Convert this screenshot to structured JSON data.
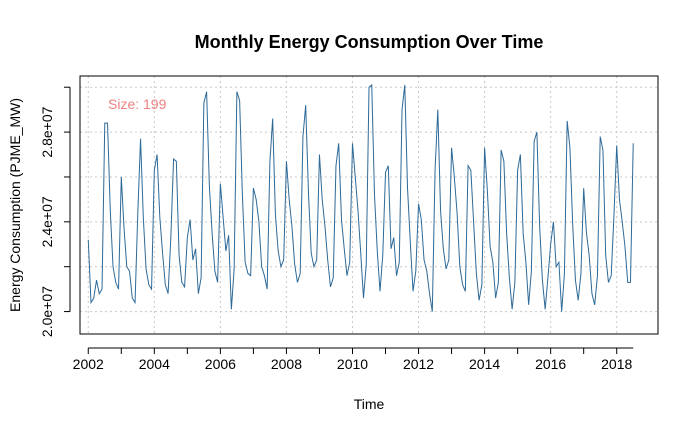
{
  "chart_data": {
    "type": "line",
    "title": "Monthly Energy Consumption Over Time",
    "xlabel": "Time",
    "ylabel": "Energy Consumption (PJME_MW)",
    "annotation": "Size: 199",
    "xlim": [
      2001.75,
      2019.25
    ],
    "ylim": [
      19000000,
      30500000
    ],
    "xticks": [
      2002,
      2004,
      2006,
      2008,
      2010,
      2012,
      2014,
      2016,
      2018
    ],
    "xtick_labels": [
      "2002",
      "2004",
      "2006",
      "2008",
      "2010",
      "2012",
      "2014",
      "2016",
      "2018"
    ],
    "yticks": [
      20000000,
      24000000,
      28000000
    ],
    "ytick_labels": [
      "2.0e+07",
      "2.4e+07",
      "2.8e+07"
    ],
    "grid": true,
    "series": [
      {
        "start": 2002.0,
        "step": 0.083333,
        "values": [
          23200000,
          20400000,
          20600000,
          21400000,
          20800000,
          21000000,
          28400000,
          28400000,
          24500000,
          22000000,
          21300000,
          21000000,
          26000000,
          23700000,
          22000000,
          21800000,
          20600000,
          20400000,
          24400000,
          27700000,
          24200000,
          21900000,
          21200000,
          21000000,
          26300000,
          27000000,
          24200000,
          22600000,
          21200000,
          20800000,
          23300000,
          26800000,
          26700000,
          22500000,
          21300000,
          21100000,
          23300000,
          24100000,
          22300000,
          22800000,
          20800000,
          21500000,
          29300000,
          29800000,
          25600000,
          23500000,
          21800000,
          21300000,
          25700000,
          24200000,
          22700000,
          23400000,
          20100000,
          21900000,
          29800000,
          29400000,
          25200000,
          22200000,
          21700000,
          21600000,
          25500000,
          25000000,
          24000000,
          22000000,
          21600000,
          21000000,
          26700000,
          28600000,
          24300000,
          22700000,
          22000000,
          22300000,
          26700000,
          25000000,
          23800000,
          22100000,
          21300000,
          21700000,
          27800000,
          29200000,
          25300000,
          22600000,
          22000000,
          22300000,
          27000000,
          25000000,
          23800000,
          22300000,
          21100000,
          21500000,
          26500000,
          27500000,
          24100000,
          22800000,
          21600000,
          22200000,
          27500000,
          26000000,
          24500000,
          22600000,
          20600000,
          22100000,
          30000000,
          30100000,
          25200000,
          22700000,
          20900000,
          22500000,
          26200000,
          26500000,
          22800000,
          23300000,
          21600000,
          22200000,
          29000000,
          30100000,
          25500000,
          23100000,
          20900000,
          21800000,
          24800000,
          24100000,
          22300000,
          21800000,
          20800000,
          20000000,
          26300000,
          29000000,
          24500000,
          22800000,
          21900000,
          22300000,
          27300000,
          26000000,
          24400000,
          22000000,
          21200000,
          20900000,
          26500000,
          26300000,
          24000000,
          21700000,
          20500000,
          21200000,
          27300000,
          25400000,
          22900000,
          22200000,
          20600000,
          21300000,
          27200000,
          26700000,
          23500000,
          21500000,
          20100000,
          21300000,
          26300000,
          27000000,
          23500000,
          22200000,
          20300000,
          21800000,
          27600000,
          28000000,
          23800000,
          21400000,
          20100000,
          21500000,
          23000000,
          24000000,
          22000000,
          22200000,
          20000000,
          21700000,
          28500000,
          27300000,
          23900000,
          21400000,
          20500000,
          21700000,
          25500000,
          23500000,
          22500000,
          20800000,
          20300000,
          21600000,
          27800000,
          27200000,
          22500000,
          21300000,
          21600000,
          24300000,
          27400000,
          25000000,
          24000000,
          22900000,
          21300000,
          21300000,
          27500000
        ]
      }
    ]
  },
  "colors": {
    "line": "#2e6a98",
    "annotation": "#f08080",
    "grid": "#c8c8c8",
    "axis": "#000000"
  }
}
